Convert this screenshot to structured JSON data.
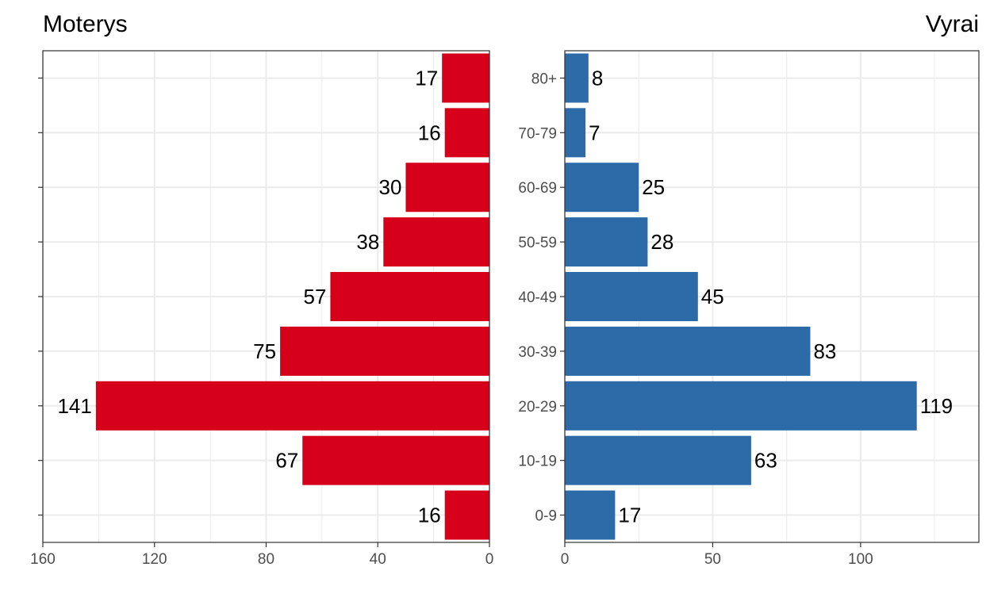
{
  "chart_data": [
    {
      "type": "bar",
      "orientation": "horizontal",
      "direction": "reversed",
      "title": "Moterys",
      "categories": [
        "0-9",
        "10-19",
        "20-29",
        "30-39",
        "40-49",
        "50-59",
        "60-69",
        "70-79",
        "80+"
      ],
      "values": [
        16,
        67,
        141,
        75,
        57,
        38,
        30,
        16,
        17
      ],
      "xlim": [
        0,
        160
      ],
      "xticks": [
        160,
        120,
        80,
        40,
        0
      ],
      "xticklabels": [
        "160",
        "120",
        "80",
        "40",
        "0"
      ],
      "color": "#d7001a",
      "grid": true
    },
    {
      "type": "bar",
      "orientation": "horizontal",
      "title": "Vyrai",
      "categories": [
        "0-9",
        "10-19",
        "20-29",
        "30-39",
        "40-49",
        "50-59",
        "60-69",
        "70-79",
        "80+"
      ],
      "values": [
        17,
        63,
        119,
        83,
        45,
        28,
        25,
        7,
        8
      ],
      "xlim": [
        0,
        140
      ],
      "xticks": [
        0,
        50,
        100
      ],
      "xticklabels": [
        "0",
        "50",
        "100"
      ],
      "color": "#2d6aa8",
      "grid": true
    }
  ]
}
